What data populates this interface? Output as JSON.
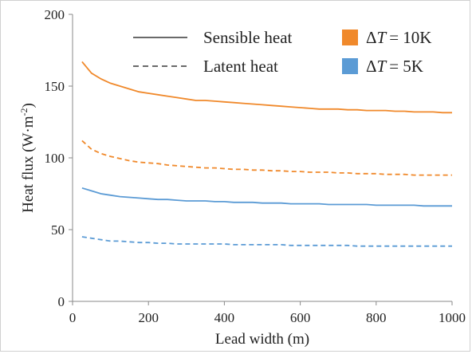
{
  "chart_data": {
    "type": "line",
    "title": "",
    "xlabel": "Lead width (m)",
    "ylabel_main": "Heat flux (W·m",
    "ylabel_sup": "-2",
    "ylabel_close": ")",
    "xlim": [
      0,
      1000
    ],
    "ylim": [
      0,
      200
    ],
    "x_ticks": [
      "0",
      "200",
      "400",
      "600",
      "800",
      "1000"
    ],
    "y_ticks": [
      "0",
      "50",
      "100",
      "150",
      "200"
    ],
    "grid": false,
    "legend_position": "top-right",
    "legend": {
      "sensible_label": "Sensible heat",
      "latent_label": "Latent heat",
      "dt10_label": "= 10K",
      "dt5_label": "= 5K",
      "delta_symbol": "Δ",
      "t_symbol": "T"
    },
    "colors": {
      "dt10": "#f0892b",
      "dt5": "#5b9bd5"
    },
    "x": [
      25,
      50,
      75,
      100,
      125,
      150,
      175,
      200,
      225,
      250,
      275,
      300,
      325,
      350,
      375,
      400,
      425,
      450,
      475,
      500,
      525,
      550,
      575,
      600,
      625,
      650,
      675,
      700,
      725,
      750,
      775,
      800,
      825,
      850,
      875,
      900,
      925,
      950,
      975,
      1000
    ],
    "series": [
      {
        "name": "Sensible heat, ΔT = 10K",
        "color_key": "dt10",
        "style": "solid",
        "values": [
          167,
          159,
          155,
          152,
          150,
          148,
          146,
          145,
          144,
          143,
          142,
          141,
          140,
          140,
          139.5,
          139,
          138.5,
          138,
          137.5,
          137,
          136.5,
          136,
          135.5,
          135,
          134.5,
          134,
          134,
          134,
          133.5,
          133.5,
          133,
          133,
          133,
          132.5,
          132.5,
          132,
          132,
          132,
          131.5,
          131.5
        ]
      },
      {
        "name": "Latent heat, ΔT = 10K",
        "color_key": "dt10",
        "style": "dashed",
        "values": [
          112,
          106,
          103,
          101,
          99.5,
          98,
          97,
          96.5,
          96,
          95,
          94.5,
          94,
          93.5,
          93,
          93,
          92.5,
          92,
          92,
          91.5,
          91.5,
          91,
          91,
          90.5,
          90.5,
          90,
          90,
          90,
          89.5,
          89.5,
          89,
          89,
          89,
          88.5,
          88.5,
          88.5,
          88,
          88,
          88,
          88,
          88
        ]
      },
      {
        "name": "Sensible heat, ΔT = 5K",
        "color_key": "dt5",
        "style": "solid",
        "values": [
          79,
          77,
          75,
          74,
          73,
          72.5,
          72,
          71.5,
          71,
          71,
          70.5,
          70,
          70,
          70,
          69.5,
          69.5,
          69,
          69,
          69,
          68.5,
          68.5,
          68.5,
          68,
          68,
          68,
          68,
          67.5,
          67.5,
          67.5,
          67.5,
          67.5,
          67,
          67,
          67,
          67,
          67,
          66.5,
          66.5,
          66.5,
          66.5
        ]
      },
      {
        "name": "Latent heat, ΔT = 5K",
        "color_key": "dt5",
        "style": "dashed",
        "values": [
          45,
          44,
          43,
          42,
          42,
          41.5,
          41,
          41,
          40.5,
          40.5,
          40,
          40,
          40,
          40,
          40,
          40,
          39.5,
          39.5,
          39.5,
          39.5,
          39.5,
          39.5,
          39,
          39,
          39,
          39,
          39,
          39,
          39,
          38.5,
          38.5,
          38.5,
          38.5,
          38.5,
          38.5,
          38.5,
          38.5,
          38.5,
          38.5,
          38.5
        ]
      }
    ]
  }
}
